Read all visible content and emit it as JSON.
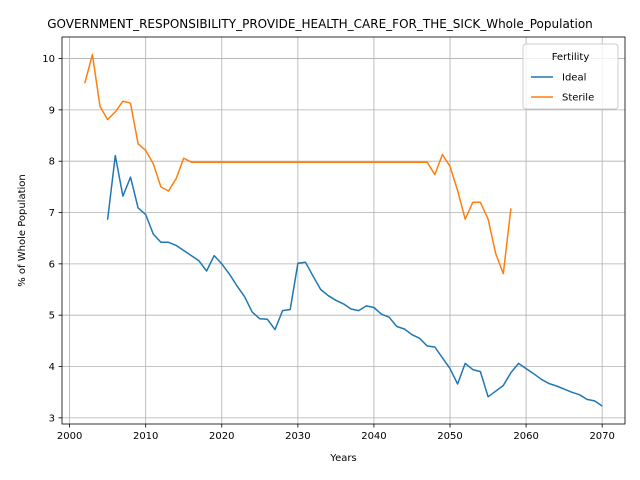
{
  "chart_data": {
    "type": "line",
    "title": "GOVERNMENT_RESPONSIBILITY_PROVIDE_HEALTH_CARE_FOR_THE_SICK_Whole_Population",
    "xlabel": "Years",
    "ylabel": "% of Whole Population",
    "xlim": [
      1999,
      2073
    ],
    "ylim": [
      2.88,
      10.42
    ],
    "xticks": [
      2000,
      2010,
      2020,
      2030,
      2040,
      2050,
      2060,
      2070
    ],
    "yticks": [
      3,
      4,
      5,
      6,
      7,
      8,
      9,
      10
    ],
    "grid": true,
    "legend": {
      "title": "Fertility",
      "position": "top-right"
    },
    "series": [
      {
        "name": "Ideal",
        "color": "#1f77b4",
        "x": [
          2005,
          2006,
          2007,
          2008,
          2009,
          2010,
          2011,
          2012,
          2013,
          2014,
          2015,
          2016,
          2017,
          2018,
          2019,
          2020,
          2021,
          2022,
          2023,
          2024,
          2025,
          2026,
          2027,
          2028,
          2029,
          2030,
          2031,
          2032,
          2033,
          2034,
          2035,
          2036,
          2037,
          2038,
          2039,
          2040,
          2041,
          2042,
          2043,
          2044,
          2045,
          2046,
          2047,
          2048,
          2049,
          2050,
          2051,
          2052,
          2053,
          2054,
          2055,
          2056,
          2057,
          2058,
          2059,
          2060,
          2061,
          2062,
          2063,
          2064,
          2065,
          2066,
          2067,
          2068,
          2069,
          2070
        ],
        "y": [
          6.86,
          8.11,
          7.32,
          7.69,
          7.09,
          6.96,
          6.58,
          6.42,
          6.42,
          6.36,
          6.26,
          6.16,
          6.06,
          5.86,
          6.16,
          6.0,
          5.8,
          5.57,
          5.36,
          5.06,
          4.93,
          4.92,
          4.72,
          5.09,
          5.11,
          6.01,
          6.03,
          5.76,
          5.5,
          5.38,
          5.29,
          5.22,
          5.12,
          5.09,
          5.18,
          5.15,
          5.02,
          4.96,
          4.78,
          4.73,
          4.62,
          4.55,
          4.4,
          4.38,
          4.17,
          3.96,
          3.66,
          4.06,
          3.94,
          3.9,
          3.41,
          3.52,
          3.63,
          3.88,
          4.06,
          3.96,
          3.86,
          3.75,
          3.67,
          3.62,
          3.56,
          3.5,
          3.45,
          3.36,
          3.33,
          3.23
        ]
      },
      {
        "name": "Sterile",
        "color": "#ff7f0e",
        "x": [
          2002,
          2003,
          2004,
          2005,
          2006,
          2007,
          2008,
          2009,
          2010,
          2011,
          2012,
          2013,
          2014,
          2015,
          2016,
          2017,
          2018,
          2019,
          2020,
          2021,
          2022,
          2023,
          2024,
          2025,
          2026,
          2027,
          2028,
          2029,
          2030,
          2031,
          2032,
          2033,
          2034,
          2035,
          2036,
          2037,
          2038,
          2039,
          2040,
          2041,
          2042,
          2043,
          2044,
          2045,
          2046,
          2047,
          2048,
          2049,
          2050,
          2051,
          2052,
          2053,
          2054,
          2055,
          2056,
          2057,
          2058
        ],
        "y": [
          9.52,
          10.08,
          9.07,
          8.81,
          8.96,
          9.17,
          9.13,
          8.34,
          8.21,
          7.95,
          7.5,
          7.42,
          7.66,
          8.06,
          7.98,
          7.98,
          7.98,
          7.98,
          7.98,
          7.98,
          7.98,
          7.98,
          7.98,
          7.98,
          7.98,
          7.98,
          7.98,
          7.98,
          7.98,
          7.98,
          7.98,
          7.98,
          7.98,
          7.98,
          7.98,
          7.98,
          7.98,
          7.98,
          7.98,
          7.98,
          7.98,
          7.98,
          7.98,
          7.98,
          7.98,
          7.98,
          7.74,
          8.13,
          7.9,
          7.43,
          6.87,
          7.2,
          7.2,
          6.87,
          6.2,
          5.81,
          7.08
        ]
      }
    ]
  }
}
